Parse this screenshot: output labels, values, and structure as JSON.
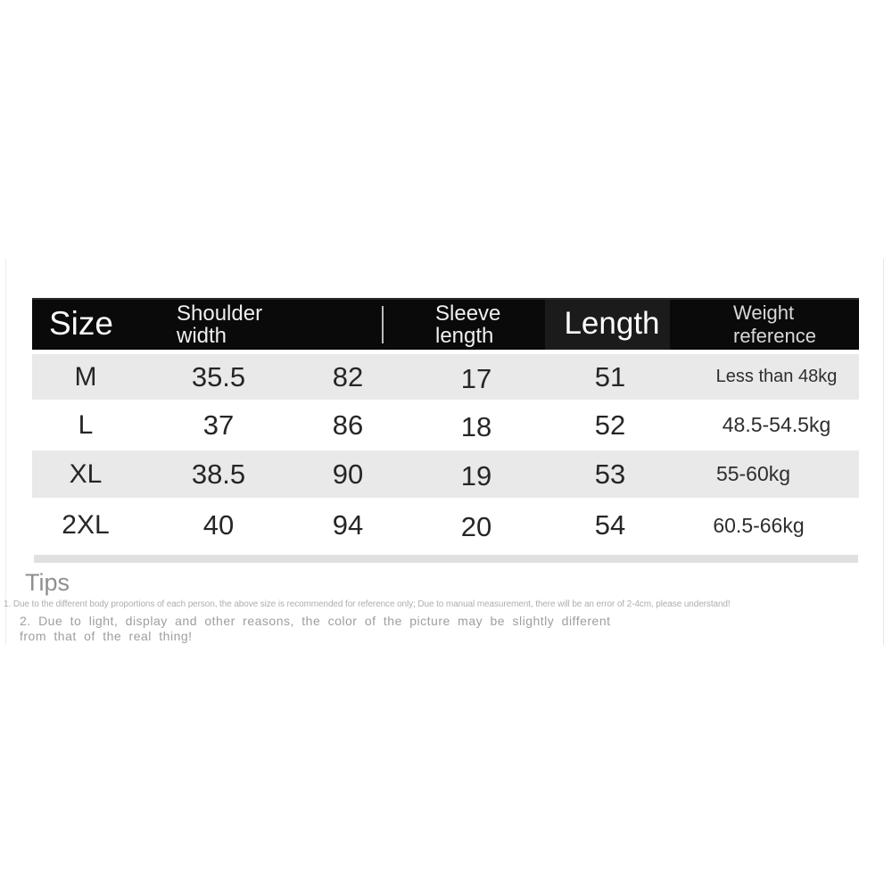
{
  "table": {
    "header": {
      "size": "Size",
      "shoulder_line1": "Shoulder",
      "shoulder_line2": "width",
      "sleeve_line1": "Sleeve",
      "sleeve_line2": "length",
      "length": "Length",
      "weight": "Weight reference"
    },
    "rows": [
      {
        "size": "M",
        "shoulder_width": "35.5",
        "col3": "82",
        "sleeve_length": "17",
        "length": "51",
        "weight": "Less than 48kg"
      },
      {
        "size": "L",
        "shoulder_width": "37",
        "col3": "86",
        "sleeve_length": "18",
        "length": "52",
        "weight": "48.5-54.5kg"
      },
      {
        "size": "XL",
        "shoulder_width": "38.5",
        "col3": "90",
        "sleeve_length": "19",
        "length": "53",
        "weight": "55-60kg"
      },
      {
        "size": "2XL",
        "shoulder_width": "40",
        "col3": "94",
        "sleeve_length": "20",
        "length": "54",
        "weight": "60.5-66kg"
      }
    ]
  },
  "tips": {
    "heading": "Tips",
    "note1": "1. Due to the different body proportions of each person, the above size is recommended for reference only; Due to manual measurement, there will be an error of 2-4cm, please understand!",
    "note2_line1": "2. Due to light, display and other reasons, the color of the picture may be slightly different",
    "note2_line2": "from that of the real thing!"
  },
  "colors": {
    "header_bg": "#0a0a0a",
    "header_text": "#f5f5f5",
    "row_alt_bg": "#e9e9e9",
    "bottom_strip": "#e0e0e0",
    "tips_text": "#9e9e9e"
  }
}
